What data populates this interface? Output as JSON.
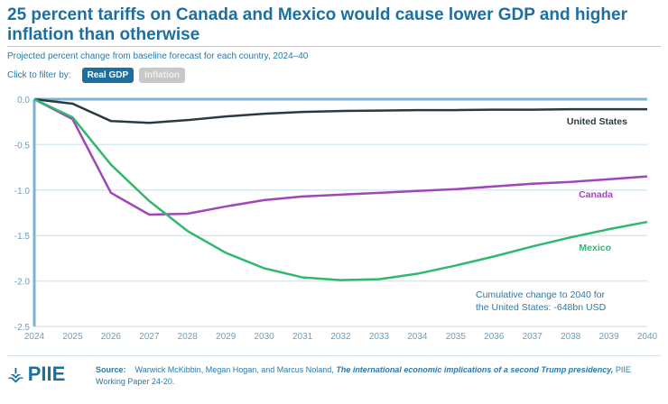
{
  "header": {
    "title": "25 percent tariffs on Canada and Mexico would cause lower GDP and higher inflation than otherwise",
    "subtitle": "Projected percent change from baseline forecast for each country, 2024–40",
    "filter_label": "Click to filter by:",
    "filters": [
      {
        "label": "Real GDP",
        "active": true
      },
      {
        "label": "Inflation",
        "active": false
      }
    ]
  },
  "chart_data": {
    "type": "line",
    "title": "25 percent tariffs on Canada and Mexico would cause lower GDP and higher inflation than otherwise",
    "subtitle": "Projected percent change from baseline forecast for each country, 2024–40",
    "xlabel": "",
    "ylabel": "",
    "x": [
      2024,
      2025,
      2026,
      2027,
      2028,
      2029,
      2030,
      2031,
      2032,
      2033,
      2034,
      2035,
      2036,
      2037,
      2038,
      2039,
      2040
    ],
    "xlim": [
      2024,
      2040
    ],
    "ylim": [
      -2.5,
      0.0
    ],
    "yticks": [
      "0.0",
      "-0.5",
      "-1.0",
      "-1.5",
      "-2.0",
      "-2.5"
    ],
    "ytick_values": [
      0.0,
      -0.5,
      -1.0,
      -1.5,
      -2.0,
      -2.5
    ],
    "xticks": [
      "2024",
      "2025",
      "2026",
      "2027",
      "2028",
      "2029",
      "2030",
      "2031",
      "2032",
      "2033",
      "2034",
      "2035",
      "2036",
      "2037",
      "2038",
      "2039",
      "2040"
    ],
    "grid": true,
    "series": [
      {
        "name": "United States",
        "color": "#2b3a42",
        "values": [
          0.0,
          -0.05,
          -0.24,
          -0.26,
          -0.23,
          -0.19,
          -0.16,
          -0.14,
          -0.13,
          -0.125,
          -0.12,
          -0.12,
          -0.115,
          -0.115,
          -0.11,
          -0.11,
          -0.11
        ]
      },
      {
        "name": "Canada",
        "color": "#a046b8",
        "values": [
          0.0,
          -0.22,
          -1.03,
          -1.27,
          -1.26,
          -1.18,
          -1.11,
          -1.07,
          -1.05,
          -1.03,
          -1.01,
          -0.99,
          -0.96,
          -0.93,
          -0.91,
          -0.88,
          -0.85
        ]
      },
      {
        "name": "Mexico",
        "color": "#2fb86e",
        "values": [
          0.0,
          -0.2,
          -0.72,
          -1.12,
          -1.45,
          -1.69,
          -1.86,
          -1.96,
          -1.99,
          -1.98,
          -1.92,
          -1.83,
          -1.73,
          -1.62,
          -1.52,
          -1.43,
          -1.35
        ]
      }
    ],
    "annotation": {
      "line1": "Cumulative change to 2040 for",
      "line2": "the United States: -648bn USD"
    },
    "colors": {
      "axis": "#7fb2cf",
      "grid": "#d7e8f1",
      "tick_text": "#6a9ec0",
      "annotation": "#2a7aa8"
    }
  },
  "footer": {
    "logo": "PIIE",
    "source_label": "Source:",
    "source_text": "Warwick McKibbin, Megan Hogan, and Marcus Noland,",
    "source_title": "The international economic implications of a second Trump presidency,",
    "source_tail": "PIIE Working Paper 24-20."
  }
}
